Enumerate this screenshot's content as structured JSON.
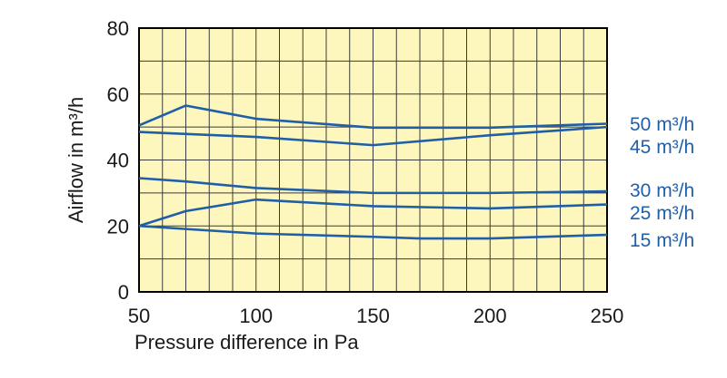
{
  "colors": {
    "plot_background": "#fdf6bd",
    "grid": "#3a3a3a",
    "frame": "#000000",
    "series_line": "#1f5fa8",
    "series_label": "#1f5fa8",
    "text": "#1a1a1a"
  },
  "chart_data": {
    "type": "line",
    "xlabel": "Pressure difference in Pa",
    "ylabel": "Airflow in m³/h",
    "xlim": [
      50,
      250
    ],
    "ylim": [
      0,
      80
    ],
    "x_ticks": [
      50,
      100,
      150,
      200,
      250
    ],
    "y_ticks": [
      0,
      20,
      40,
      60,
      80
    ],
    "grid": true,
    "legend": "right, labels beside line ends",
    "series": [
      {
        "name": "50 m³/h",
        "x": [
          50,
          70,
          100,
          150,
          200,
          250
        ],
        "y": [
          50.5,
          56.5,
          52.5,
          49.8,
          49.8,
          51.0
        ]
      },
      {
        "name": "45 m³/h",
        "x": [
          50,
          100,
          150,
          200,
          250
        ],
        "y": [
          48.5,
          47.0,
          44.5,
          47.5,
          50.0
        ]
      },
      {
        "name": "30 m³/h",
        "x": [
          50,
          70,
          100,
          150,
          200,
          250
        ],
        "y": [
          34.5,
          33.5,
          31.5,
          30.0,
          30.0,
          30.5
        ]
      },
      {
        "name": "25 m³/h",
        "x": [
          50,
          70,
          100,
          150,
          200,
          250
        ],
        "y": [
          20.0,
          24.5,
          28.0,
          26.0,
          25.3,
          26.5
        ]
      },
      {
        "name": "15 m³/h",
        "x": [
          50,
          100,
          150,
          170,
          200,
          250
        ],
        "y": [
          20.0,
          17.7,
          16.7,
          16.2,
          16.2,
          17.3
        ]
      }
    ]
  }
}
